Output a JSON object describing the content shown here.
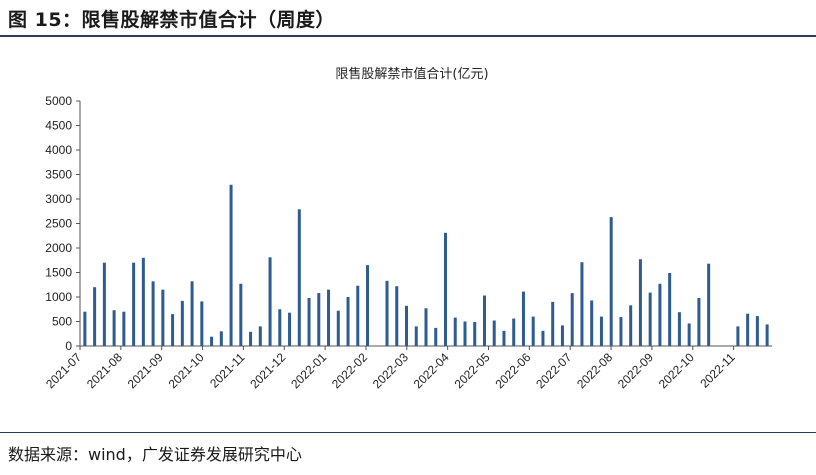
{
  "figure_title": "图 15：限售股解禁市值合计（周度）",
  "source_text": "数据来源：wind，广发证券发展研究中心",
  "colors": {
    "bar": "#2e5b92",
    "rule": "#2b3a55"
  },
  "chart_data": {
    "type": "bar",
    "title": "限售股解禁市值合计(亿元)",
    "ylim": [
      0,
      5000
    ],
    "yticks": [
      0,
      500,
      1000,
      1500,
      2000,
      2500,
      3000,
      3500,
      4000,
      4500,
      5000
    ],
    "xlabels": [
      "2021-07",
      "2021-08",
      "2021-09",
      "2021-10",
      "2021-11",
      "2021-12",
      "2022-01",
      "2022-02",
      "2022-03",
      "2022-04",
      "2022-05",
      "2022-06",
      "2022-07",
      "2022-08",
      "2022-09",
      "2022-10",
      "2022-11"
    ],
    "values": [
      700,
      1200,
      1700,
      730,
      700,
      1700,
      1800,
      1320,
      1150,
      650,
      920,
      1320,
      910,
      190,
      300,
      3290,
      1270,
      290,
      400,
      1810,
      750,
      680,
      2790,
      980,
      1080,
      1150,
      720,
      1000,
      1230,
      1650,
      0,
      1330,
      1220,
      820,
      400,
      770,
      370,
      2310,
      580,
      500,
      490,
      1030,
      520,
      310,
      560,
      1110,
      600,
      310,
      900,
      420,
      1080,
      1710,
      930,
      600,
      2630,
      590,
      830,
      1770,
      1090,
      1270,
      1490,
      690,
      460,
      980,
      1680,
      0,
      0,
      400,
      660,
      610,
      440
    ]
  }
}
